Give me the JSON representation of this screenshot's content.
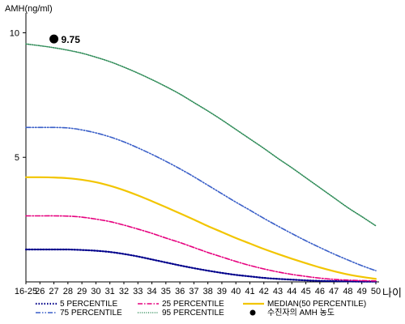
{
  "chart_data": {
    "type": "line",
    "ylabel": "AMH(ng/ml)",
    "xlabel": "나이",
    "ylim": [
      0,
      10.6
    ],
    "yticks": [
      5,
      10
    ],
    "categories": [
      "16-25",
      "26",
      "27",
      "28",
      "29",
      "30",
      "31",
      "32",
      "33",
      "34",
      "35",
      "36",
      "37",
      "38",
      "39",
      "40",
      "41",
      "42",
      "43",
      "44",
      "45",
      "46",
      "47",
      "48",
      "49",
      "50"
    ],
    "grid": false,
    "legend_position": "bottom",
    "series": [
      {
        "name": "5 PERCENTILE",
        "color": "#00008b",
        "dash": "dotted",
        "values": [
          1.3,
          1.3,
          1.3,
          1.3,
          1.28,
          1.25,
          1.2,
          1.12,
          1.02,
          0.9,
          0.78,
          0.66,
          0.55,
          0.45,
          0.36,
          0.28,
          0.22,
          0.16,
          0.12,
          0.09,
          0.06,
          0.04,
          0.03,
          0.02,
          0.01,
          0.01
        ]
      },
      {
        "name": "25 PERCENTILE",
        "color": "#e6007e",
        "dash": "dashdot",
        "values": [
          2.65,
          2.65,
          2.65,
          2.64,
          2.6,
          2.52,
          2.42,
          2.28,
          2.12,
          1.95,
          1.76,
          1.58,
          1.38,
          1.18,
          1.0,
          0.82,
          0.66,
          0.52,
          0.4,
          0.3,
          0.22,
          0.15,
          0.1,
          0.07,
          0.05,
          0.04
        ]
      },
      {
        "name": "MEDIAN(50 PERCENTILE)",
        "color": "#f2c500",
        "dash": "solid",
        "values": [
          4.2,
          4.2,
          4.19,
          4.16,
          4.1,
          4.0,
          3.86,
          3.68,
          3.47,
          3.24,
          3.0,
          2.75,
          2.5,
          2.24,
          2.0,
          1.76,
          1.54,
          1.32,
          1.12,
          0.93,
          0.75,
          0.58,
          0.43,
          0.3,
          0.2,
          0.12
        ]
      },
      {
        "name": "75 PERCENTILE",
        "color": "#3a5fc8",
        "dash": "dashdotdot",
        "values": [
          6.2,
          6.2,
          6.2,
          6.18,
          6.1,
          5.98,
          5.82,
          5.62,
          5.38,
          5.12,
          4.84,
          4.54,
          4.22,
          3.88,
          3.54,
          3.2,
          2.88,
          2.55,
          2.24,
          1.94,
          1.65,
          1.38,
          1.12,
          0.88,
          0.65,
          0.45
        ]
      },
      {
        "name": "95 PERCENTILE",
        "color": "#2e8b57",
        "dash": "densedot",
        "values": [
          9.55,
          9.48,
          9.4,
          9.3,
          9.18,
          9.02,
          8.84,
          8.62,
          8.38,
          8.12,
          7.84,
          7.54,
          7.2,
          6.86,
          6.5,
          6.12,
          5.74,
          5.36,
          4.96,
          4.58,
          4.18,
          3.78,
          3.38,
          2.98,
          2.62,
          2.25
        ]
      }
    ],
    "annotation": {
      "x": "27",
      "y": 9.75,
      "label": "9.75",
      "legend": "수진자의 AMH 농도"
    }
  }
}
